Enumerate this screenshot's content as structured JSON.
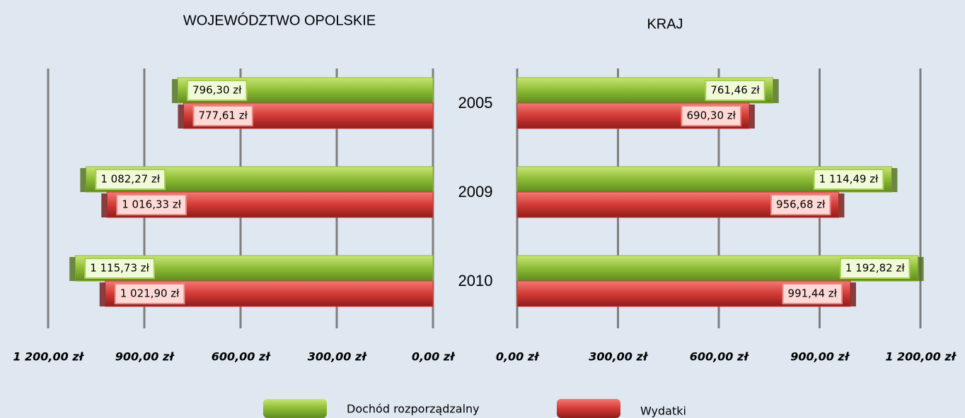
{
  "chart_data": [
    {
      "type": "bar",
      "orientation": "horizontal",
      "reversed": true,
      "title": "WOJEWÓDZTWO OPOLSKIE",
      "categories": [
        "2005",
        "2009",
        "2010"
      ],
      "series": [
        {
          "name": "Dochód rozporządzalny",
          "color": "#8cbb35",
          "values": [
            796.3,
            1082.27,
            1115.73
          ],
          "value_labels": [
            "796,30 zł",
            "1 082,27 zł",
            "1 115,73 zł"
          ]
        },
        {
          "name": "Wydatki",
          "color": "#d43a36",
          "values": [
            777.61,
            1016.33,
            1021.9
          ],
          "value_labels": [
            "777,61 zł",
            "1 016,33 zł",
            "1 021,90 zł"
          ]
        }
      ],
      "xlim": [
        0,
        1200
      ],
      "xticks": [
        {
          "value": 0,
          "label": "0,00 zł"
        },
        {
          "value": 300,
          "label": "300,00 zł"
        },
        {
          "value": 600,
          "label": "600,00 zł"
        },
        {
          "value": 900,
          "label": "900,00 zł"
        },
        {
          "value": 1200,
          "label": "1 200,00 zł"
        }
      ],
      "grid": true
    },
    {
      "type": "bar",
      "orientation": "horizontal",
      "reversed": false,
      "title": "KRAJ",
      "series": [
        {
          "color": "#8cbb35",
          "values": [
            761.46,
            1114.49,
            1192.82
          ],
          "value_labels": [
            "761,46 zł",
            "1 114,49 zł",
            "1 192,82 zł"
          ]
        },
        {
          "color": "#d43a36",
          "values": [
            690.3,
            956.68,
            991.44
          ],
          "value_labels": [
            "690,30 zł",
            "956,68 zł",
            "991,44 zł"
          ]
        }
      ],
      "xlim": [
        0,
        1200
      ],
      "xticks": [
        {
          "value": 0,
          "label": "0,00 zł"
        },
        {
          "value": 300,
          "label": "300,00 zł"
        },
        {
          "value": 600,
          "label": "600,00 zł"
        },
        {
          "value": 900,
          "label": "900,00 zł"
        },
        {
          "value": 1200,
          "label": "1 200,00 zł"
        }
      ],
      "grid": true
    }
  ]
}
